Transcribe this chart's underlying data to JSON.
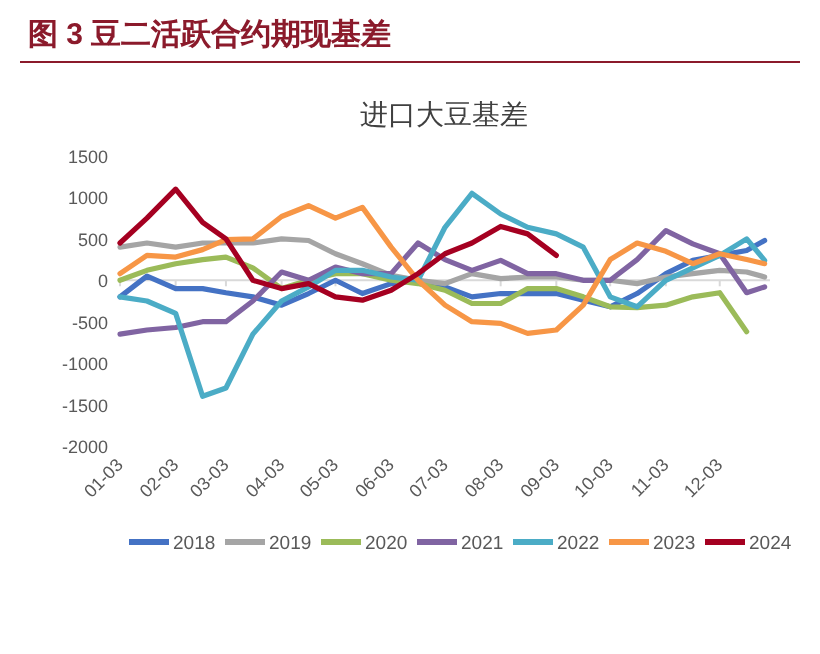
{
  "chart_data": {
    "type": "line",
    "title": "图 3 豆二活跃合约期现基差",
    "subtitle": "进口大豆基差",
    "x": [
      "--01-03",
      "--01-18",
      "--02-03",
      "--02-18",
      "--03-03",
      "--03-18",
      "--04-03",
      "--04-18",
      "--05-03",
      "--05-18",
      "--06-03",
      "--06-18",
      "--07-03",
      "--07-18",
      "--08-03",
      "--08-18",
      "--09-03",
      "--09-18",
      "--10-03",
      "--10-18",
      "--11-03",
      "--11-18",
      "--12-03",
      "--12-18",
      "--12-28"
    ],
    "xlim": [
      "--01-03",
      "--12-31"
    ],
    "xticks": [
      {
        "value": "--01-03",
        "label": "01-03"
      },
      {
        "value": "--02-03",
        "label": "02-03"
      },
      {
        "value": "--03-03",
        "label": "03-03"
      },
      {
        "value": "--04-03",
        "label": "04-03"
      },
      {
        "value": "--05-03",
        "label": "05-03"
      },
      {
        "value": "--06-03",
        "label": "06-03"
      },
      {
        "value": "--07-03",
        "label": "07-03"
      },
      {
        "value": "--08-03",
        "label": "08-03"
      },
      {
        "value": "--09-03",
        "label": "09-03"
      },
      {
        "value": "--10-03",
        "label": "10-03"
      },
      {
        "value": "--11-03",
        "label": "11-03"
      },
      {
        "value": "--12-03",
        "label": "12-03"
      }
    ],
    "ylim": [
      -2000,
      1500
    ],
    "yticks": [
      -2000,
      -1500,
      -1000,
      -500,
      0,
      500,
      1000,
      1500
    ],
    "legend": "bottom",
    "grid": false,
    "ref_lines": [
      {
        "axis": "y",
        "value": 0,
        "color": "#d9d9d9"
      }
    ],
    "series": [
      {
        "name": "2018",
        "color": "#4472c4",
        "values": [
          -200,
          50,
          -100,
          -100,
          -150,
          -200,
          -300,
          -160,
          0,
          -160,
          -40,
          0,
          -80,
          -200,
          -160,
          -160,
          -160,
          -240,
          -320,
          -160,
          80,
          240,
          300,
          360,
          480
        ]
      },
      {
        "name": "2019",
        "color": "#a5a5a5",
        "values": [
          400,
          450,
          400,
          450,
          450,
          450,
          500,
          480,
          320,
          200,
          60,
          0,
          -40,
          80,
          20,
          40,
          40,
          0,
          0,
          -40,
          40,
          80,
          120,
          100,
          40
        ]
      },
      {
        "name": "2020",
        "color": "#9bbb59",
        "values": [
          0,
          120,
          200,
          250,
          280,
          150,
          -100,
          0,
          80,
          80,
          0,
          -40,
          -120,
          -280,
          -280,
          -100,
          -100,
          -200,
          -320,
          -330,
          -300,
          -200,
          -150,
          -620,
          null
        ]
      },
      {
        "name": "2021",
        "color": "#8064a2",
        "values": [
          -650,
          -600,
          -570,
          -500,
          -500,
          -250,
          100,
          0,
          160,
          80,
          80,
          450,
          250,
          120,
          240,
          80,
          80,
          0,
          0,
          250,
          600,
          440,
          320,
          -150,
          -80
        ]
      },
      {
        "name": "2022",
        "color": "#4bacc6",
        "values": [
          -200,
          -250,
          -400,
          -1400,
          -1300,
          -650,
          -250,
          -80,
          120,
          120,
          40,
          0,
          640,
          1050,
          800,
          640,
          560,
          400,
          -200,
          -320,
          0,
          150,
          300,
          500,
          240
        ]
      },
      {
        "name": "2023",
        "color": "#f79646",
        "values": [
          80,
          300,
          280,
          370,
          490,
          500,
          770,
          900,
          750,
          880,
          400,
          0,
          -300,
          -500,
          -520,
          -640,
          -600,
          -300,
          250,
          450,
          350,
          200,
          320,
          250,
          200
        ]
      },
      {
        "name": "2024",
        "color": "#a50021",
        "values": [
          450,
          750,
          1100,
          700,
          500,
          0,
          -100,
          -40,
          -200,
          -240,
          -120,
          80,
          320,
          450,
          650,
          560,
          300,
          null,
          null,
          null,
          null,
          null,
          null,
          null,
          null
        ]
      }
    ]
  }
}
